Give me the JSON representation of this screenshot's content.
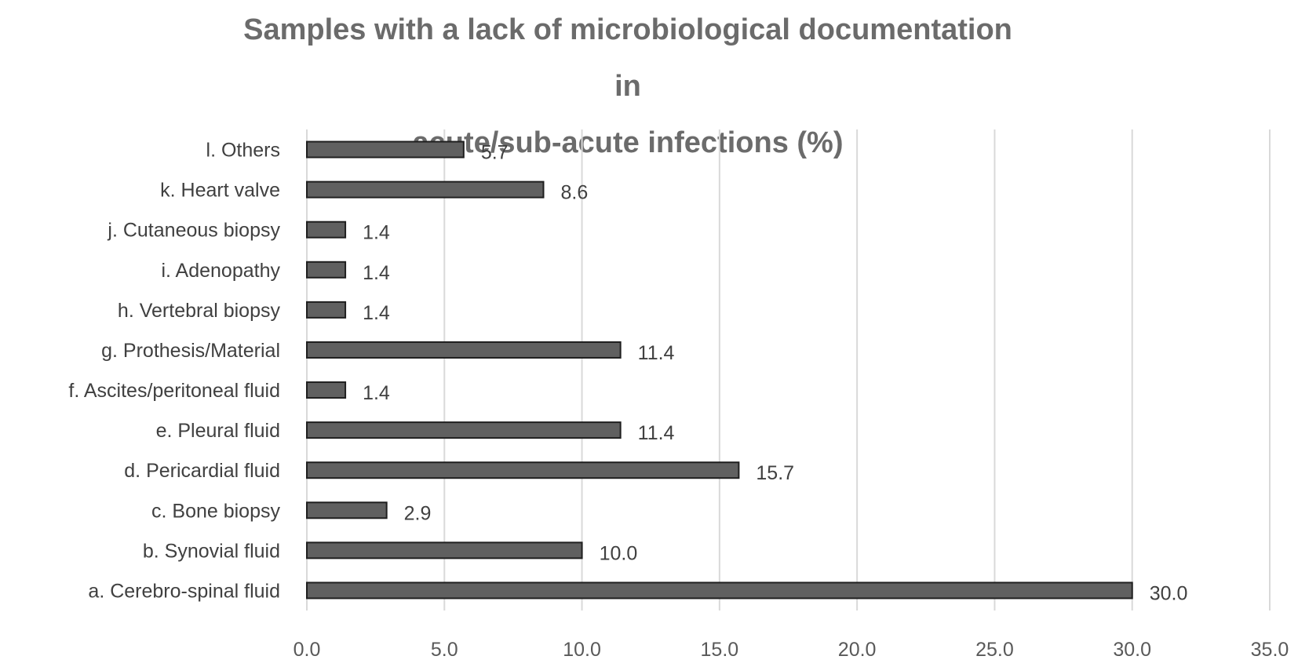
{
  "chart_data": {
    "type": "bar",
    "orientation": "horizontal",
    "title": [
      "Samples with a lack of microbiological documentation in",
      "acute/sub-acute infections (%)"
    ],
    "categories": [
      "a. Cerebro-spinal fluid",
      "b. Synovial fluid",
      "c. Bone biopsy",
      "d. Pericardial fluid",
      "e. Pleural fluid",
      "f. Ascites/peritoneal fluid",
      "g. Prothesis/Material",
      "h. Vertebral biopsy",
      "i. Adenopathy",
      "j. Cutaneous biopsy",
      "k. Heart valve",
      "l. Others"
    ],
    "values": [
      30.0,
      10.0,
      2.9,
      15.7,
      11.4,
      1.4,
      11.4,
      1.4,
      1.4,
      1.4,
      8.6,
      5.7
    ],
    "data_labels": [
      "30.0",
      "10.0",
      "2.9",
      "15.7",
      "11.4",
      "1.4",
      "11.4",
      "1.4",
      "1.4",
      "1.4",
      "8.6",
      "5.7"
    ],
    "xlim": [
      0,
      35
    ],
    "ticks": [
      "0.0",
      "5.0",
      "10.0",
      "15.0",
      "20.0",
      "25.0",
      "30.0",
      "35.0"
    ],
    "grid": "vertical",
    "legend": "none",
    "colors": {
      "bar": "#606060",
      "bar_edge": "#1f1f1f",
      "grid": "#d9d9d9",
      "title": "#6b6b6b"
    }
  }
}
